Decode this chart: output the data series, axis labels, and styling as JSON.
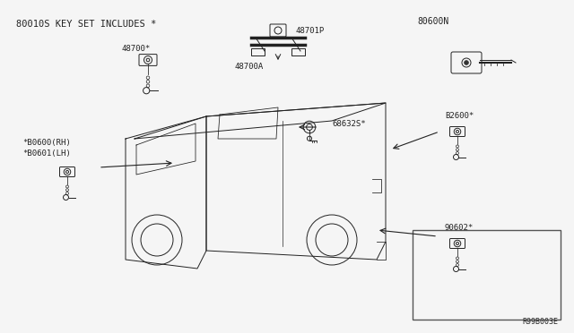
{
  "title": "80010S KEY SET INCLUDES *",
  "bg_color": "#f5f5f5",
  "border_color": "#888888",
  "text_color": "#222222",
  "part_numbers": {
    "top_label": "80010S KEY SET INCLUDES *",
    "inset_label": "80600N",
    "part_48700": "48700*",
    "part_48701P": "48701P",
    "part_48700A": "48700A",
    "part_68632S": "68632S*",
    "part_B2600": "B2600*",
    "part_B0600": "*B0600(RH)",
    "part_B0601": "*B0601(LH)",
    "part_90602": "90602*",
    "part_ref": "R99B003E"
  },
  "fig_width": 6.4,
  "fig_height": 3.72,
  "dpi": 100
}
